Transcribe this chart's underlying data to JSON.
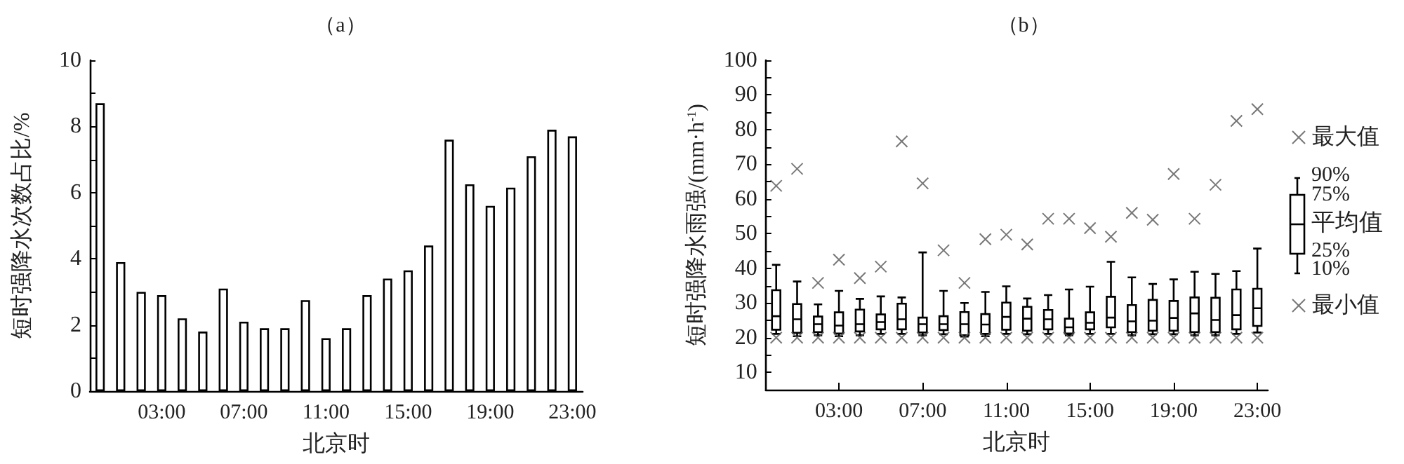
{
  "chart_data": [
    {
      "type": "bar",
      "title": "（a）",
      "xlabel": "北京时",
      "ylabel": "短时强降水次数占比/%",
      "categories": [
        null,
        null,
        null,
        "03:00",
        null,
        null,
        null,
        "07:00",
        null,
        null,
        null,
        "11:00",
        null,
        null,
        null,
        "15:00",
        null,
        null,
        null,
        "19:00",
        null,
        null,
        null,
        "23:00"
      ],
      "values": [
        8.7,
        3.9,
        3.0,
        2.9,
        2.2,
        1.8,
        3.1,
        2.1,
        1.9,
        1.9,
        2.75,
        1.6,
        1.9,
        2.9,
        3.4,
        3.65,
        4.4,
        7.6,
        6.25,
        5.6,
        6.15,
        7.1,
        7.9,
        7.7
      ],
      "color": "#ffffff",
      "ylim": [
        0,
        10
      ],
      "yticks": [
        0,
        {
          "value": 1,
          "label": null
        },
        2,
        {
          "value": 3,
          "label": null
        },
        4,
        {
          "value": 5,
          "label": null
        },
        6,
        {
          "value": 7,
          "label": null
        },
        8,
        {
          "value": 9,
          "label": null
        },
        10
      ],
      "grid": false,
      "legend": false
    },
    {
      "type": "box",
      "title": "（b）",
      "xlabel": "北京时",
      "ylabel": "短时强降水雨强/(mm·h$^{-1}$)",
      "categories": [
        null,
        null,
        null,
        "03:00",
        null,
        null,
        null,
        "07:00",
        null,
        null,
        null,
        "11:00",
        null,
        null,
        null,
        "15:00",
        null,
        null,
        null,
        "19:00",
        null,
        null,
        null,
        "23:00"
      ],
      "boxes": [
        {
          "low": 21.1,
          "q1": 22.3,
          "median": 26.2,
          "q3": 33.7,
          "high": 41.0
        },
        {
          "low": 20.4,
          "q1": 21.4,
          "median": 25.3,
          "q3": 29.7,
          "high": 36.2
        },
        {
          "low": 20.7,
          "q1": 21.6,
          "median": 23.9,
          "q3": 26.1,
          "high": 29.6
        },
        {
          "low": 20.4,
          "q1": 21.2,
          "median": 23.5,
          "q3": 27.3,
          "high": 33.5
        },
        {
          "low": 20.7,
          "q1": 21.8,
          "median": 23.9,
          "q3": 28.1,
          "high": 31.2
        },
        {
          "low": 21.1,
          "q1": 22.4,
          "median": 24.5,
          "q3": 26.7,
          "high": 31.9
        },
        {
          "low": 21.1,
          "q1": 22.4,
          "median": 25.3,
          "q3": 29.8,
          "high": 31.6
        },
        {
          "low": 20.7,
          "q1": 21.5,
          "median": 23.9,
          "q3": 25.8,
          "high": 44.6
        },
        {
          "low": 21.0,
          "q1": 22.2,
          "median": 23.9,
          "q3": 26.2,
          "high": 33.5
        },
        {
          "low": 20.3,
          "q1": 20.7,
          "median": 23.9,
          "q3": 27.4,
          "high": 30.0
        },
        {
          "low": 20.4,
          "q1": 21.1,
          "median": 23.8,
          "q3": 26.8,
          "high": 33.2
        },
        {
          "low": 21.1,
          "q1": 22.3,
          "median": 26.0,
          "q3": 30.1,
          "high": 34.8
        },
        {
          "low": 21.0,
          "q1": 22.0,
          "median": 25.5,
          "q3": 28.9,
          "high": 31.3
        },
        {
          "low": 21.1,
          "q1": 22.4,
          "median": 25.3,
          "q3": 28.0,
          "high": 32.3
        },
        {
          "low": 20.7,
          "q1": 21.2,
          "median": 23.0,
          "q3": 25.5,
          "high": 33.9
        },
        {
          "low": 21.1,
          "q1": 22.4,
          "median": 24.3,
          "q3": 27.3,
          "high": 34.7
        },
        {
          "low": 21.1,
          "q1": 23.0,
          "median": 25.8,
          "q3": 31.8,
          "high": 41.9
        },
        {
          "low": 20.7,
          "q1": 21.6,
          "median": 24.7,
          "q3": 29.4,
          "high": 37.4
        },
        {
          "low": 21.0,
          "q1": 22.0,
          "median": 24.9,
          "q3": 30.9,
          "high": 35.5
        },
        {
          "low": 21.0,
          "q1": 22.0,
          "median": 25.7,
          "q3": 30.6,
          "high": 36.8
        },
        {
          "low": 20.7,
          "q1": 21.6,
          "median": 27.0,
          "q3": 31.6,
          "high": 39.0
        },
        {
          "low": 20.7,
          "q1": 21.6,
          "median": 25.1,
          "q3": 31.5,
          "high": 38.4
        },
        {
          "low": 21.1,
          "q1": 22.4,
          "median": 26.5,
          "q3": 33.9,
          "high": 39.2
        },
        {
          "low": 21.5,
          "q1": 23.4,
          "median": 28.5,
          "q3": 34.1,
          "high": 45.7
        }
      ],
      "color": "#000000",
      "series": [
        {
          "name": "最大值",
          "type": "scatter",
          "marker": "cross",
          "color": "#555555",
          "values": [
            63.8,
            68.7,
            35.8,
            42.5,
            37.2,
            40.5,
            76.6,
            64.5,
            45.2,
            35.8,
            48.4,
            49.7,
            46.9,
            54.3,
            54.3,
            51.6,
            49.1,
            56.0,
            54.0,
            67.2,
            54.3,
            64.1,
            82.5,
            85.9
          ]
        },
        {
          "name": "最小值",
          "type": "scatter",
          "marker": "cross",
          "color": "#555555",
          "values": [
            20,
            20,
            20,
            20,
            20,
            20,
            20,
            20,
            20,
            20,
            20,
            20,
            20,
            20,
            20,
            20,
            20,
            20,
            20,
            20,
            20,
            20,
            20,
            20
          ]
        }
      ],
      "annotations": [
        "90%",
        "75%",
        "平均值",
        "25%",
        "10%"
      ],
      "ylim": [
        5,
        100
      ],
      "yticks": [
        10,
        {
          "value": 15,
          "label": null
        },
        20,
        {
          "value": 25,
          "label": null
        },
        30,
        {
          "value": 35,
          "label": null
        },
        40,
        {
          "value": 45,
          "label": null
        },
        50,
        {
          "value": 55,
          "label": null
        },
        60,
        {
          "value": 65,
          "label": null
        },
        70,
        {
          "value": 75,
          "label": null
        },
        80,
        {
          "value": 85,
          "label": null
        },
        90,
        {
          "value": 95,
          "label": null
        },
        100
      ],
      "grid": false,
      "legend": "right"
    }
  ]
}
